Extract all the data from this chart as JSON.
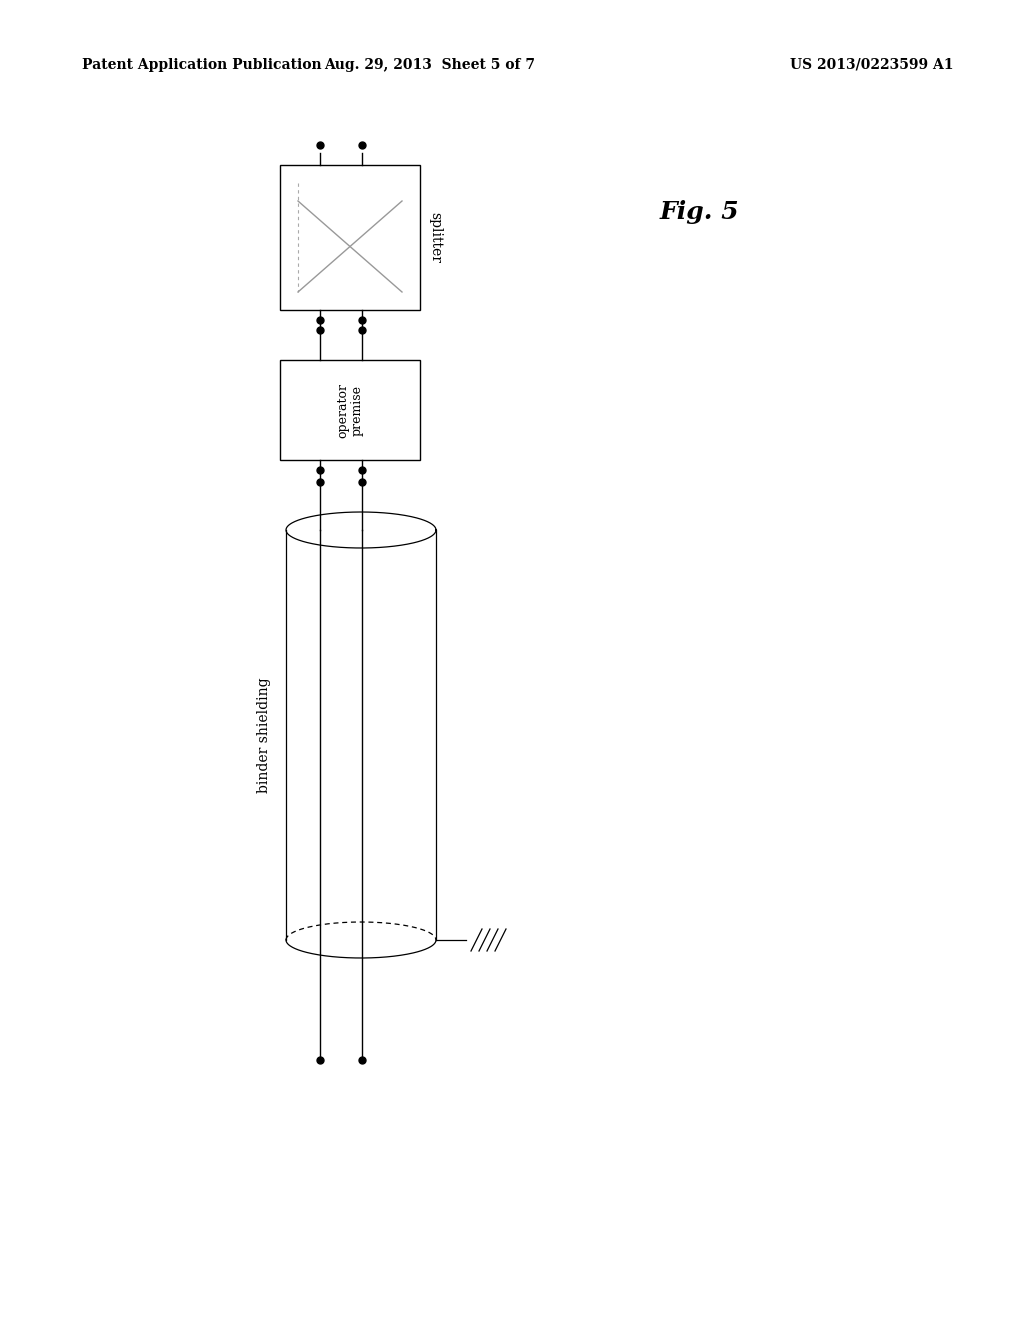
{
  "bg_color": "#ffffff",
  "header_left": "Patent Application Publication",
  "header_mid": "Aug. 29, 2013  Sheet 5 of 7",
  "header_right": "US 2013/0223599 A1",
  "fig_label": "Fig. 5",
  "splitter_label": "splitter",
  "op_label": "operator\npremise",
  "binder_label": "binder shielding",
  "line_color": "#000000",
  "x_line_color": "#bbbbbb",
  "line_lw": 1.0,
  "dot_size": 5
}
